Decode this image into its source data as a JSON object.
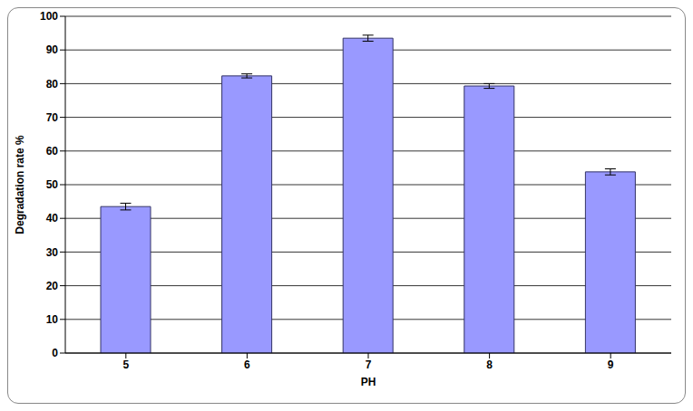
{
  "chart_data": {
    "type": "bar",
    "x_label": "PH",
    "y_label": "Degradation rate %",
    "categories": [
      "5",
      "6",
      "7",
      "8",
      "9"
    ],
    "values": [
      43.5,
      82.3,
      93.5,
      79.3,
      53.8
    ],
    "errors": [
      1.0,
      0.6,
      0.9,
      0.7,
      0.9
    ],
    "color": "#9999ff",
    "ylim": [
      0,
      100
    ],
    "yticks": [
      0,
      10,
      20,
      30,
      40,
      50,
      60,
      70,
      80,
      90,
      100
    ],
    "grid": true
  }
}
